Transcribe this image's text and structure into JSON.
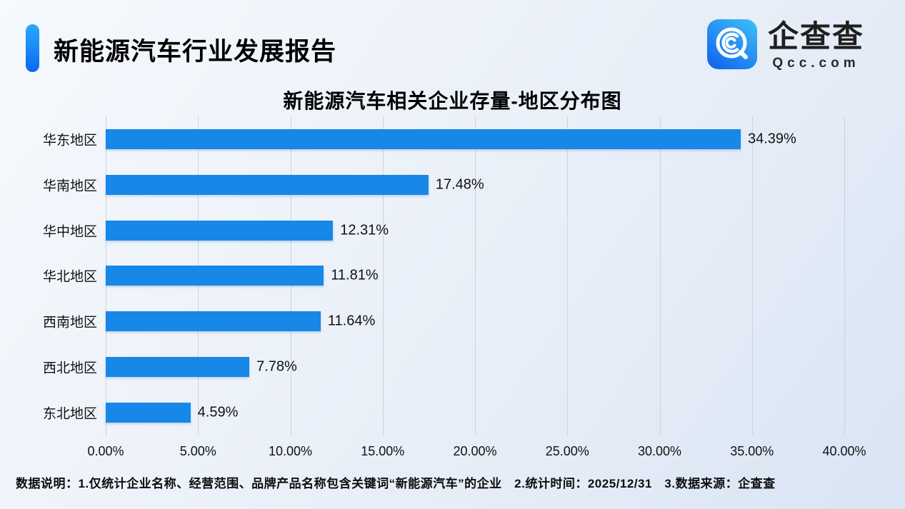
{
  "header": {
    "title": "新能源汽车行业发展报告",
    "logo": {
      "name": "企查查",
      "domain": "Qcc.com",
      "icon": "qcc-magnifier-icon"
    }
  },
  "chart_data": {
    "type": "bar",
    "orientation": "horizontal",
    "title": "新能源汽车相关企业存量-地区分布图",
    "categories": [
      "华东地区",
      "华南地区",
      "华中地区",
      "华北地区",
      "西南地区",
      "西北地区",
      "东北地区"
    ],
    "values": [
      34.39,
      17.48,
      12.31,
      11.81,
      11.64,
      7.78,
      4.59
    ],
    "value_labels": [
      "34.39%",
      "17.48%",
      "12.31%",
      "11.81%",
      "11.64%",
      "7.78%",
      "4.59%"
    ],
    "xlabel": "",
    "ylabel": "",
    "xlim": [
      0,
      40
    ],
    "x_ticks": [
      0,
      5,
      10,
      15,
      20,
      25,
      30,
      35,
      40
    ],
    "x_tick_labels": [
      "0.00%",
      "5.00%",
      "10.00%",
      "15.00%",
      "20.00%",
      "25.00%",
      "30.00%",
      "35.00%",
      "40.00%"
    ],
    "grid": "vertical-only",
    "legend": "none",
    "bar_color": "#1787E8"
  },
  "footer": {
    "note": "数据说明：1.仅统计企业名称、经营范围、品牌产品名称包含关键词“新能源汽车”的企业　2.统计时间：2025/12/31　3.数据来源：企查查"
  },
  "colors": {
    "brand_blue": "#1787E8",
    "accent_gradient_top": "#2BAAF9",
    "accent_gradient_bottom": "#0B66F3",
    "gridline": "#ccd3de",
    "background_light": "#f6f9fd",
    "background_dark": "#d9e4f4"
  }
}
